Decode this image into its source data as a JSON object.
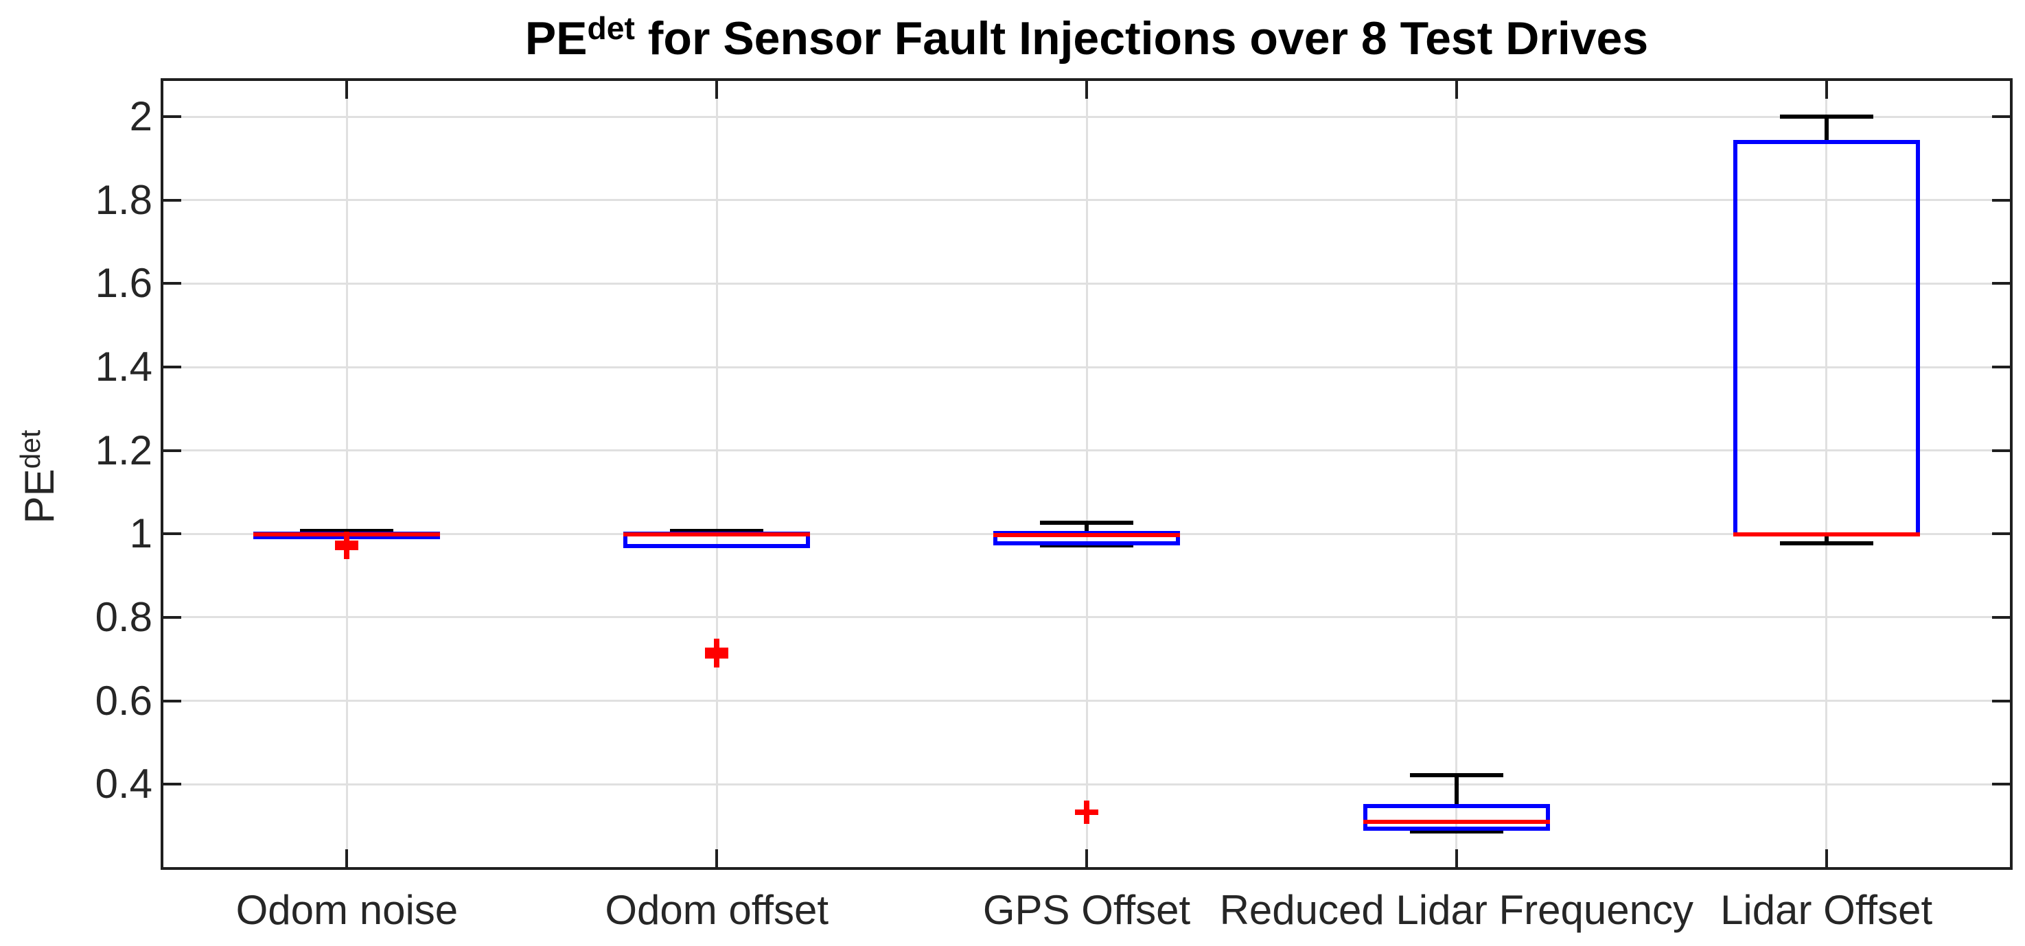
{
  "title": {
    "prefix": "PE",
    "sup": "det",
    "rest": " for Sensor Fault Injections over 8 Test Drives"
  },
  "y_axis": {
    "label_prefix": "PE",
    "label_sup": "det",
    "tick_labels": [
      "0.4",
      "0.6",
      "0.8",
      "1",
      "1.2",
      "1.4",
      "1.6",
      "1.8",
      "2"
    ]
  },
  "chart_data": {
    "type": "boxplot",
    "title": "PE^det for Sensor Fault Injections over 8 Test Drives",
    "ylabel": "PE^det",
    "categories": [
      "Odom noise",
      "Odom offset",
      "GPS Offset",
      "Reduced Lidar Frequency",
      "Lidar Offset"
    ],
    "yticks": [
      0.4,
      0.6,
      0.8,
      1,
      1.2,
      1.4,
      1.6,
      1.8,
      2
    ],
    "ylim": [
      0.198,
      2.089
    ],
    "grid": true,
    "legend": "none",
    "series": [
      {
        "label": "Odom noise",
        "whisker_low": 0.993,
        "q1": 0.993,
        "median": 0.998,
        "q3": 1.001,
        "whisker_high": 1.007,
        "outliers": [
          0.977,
          0.968
        ]
      },
      {
        "label": "Odom offset",
        "whisker_low": 0.971,
        "q1": 0.971,
        "median": 0.998,
        "q3": 1.001,
        "whisker_high": 1.007,
        "outliers": [
          0.721,
          0.707
        ]
      },
      {
        "label": "GPS Offset",
        "whisker_low": 0.972,
        "q1": 0.978,
        "median": 0.997,
        "q3": 1.002,
        "whisker_high": 1.027,
        "outliers": [
          0.333
        ]
      },
      {
        "label": "Reduced Lidar Frequency",
        "whisker_low": 0.286,
        "q1": 0.294,
        "median": 0.31,
        "q3": 0.347,
        "whisker_high": 0.422,
        "outliers": []
      },
      {
        "label": "Lidar Offset",
        "whisker_low": 0.978,
        "q1": 0.998,
        "median": 0.999,
        "q3": 1.939,
        "whisker_high": 2.0,
        "outliers": []
      }
    ],
    "colors": {
      "box": "#0000ff",
      "median": "#ff0000",
      "whisker": "#000000",
      "outlier": "#ff0000",
      "grid": "#e0e0e0",
      "axis": "#1f1f1f",
      "background": "#ffffff"
    }
  }
}
